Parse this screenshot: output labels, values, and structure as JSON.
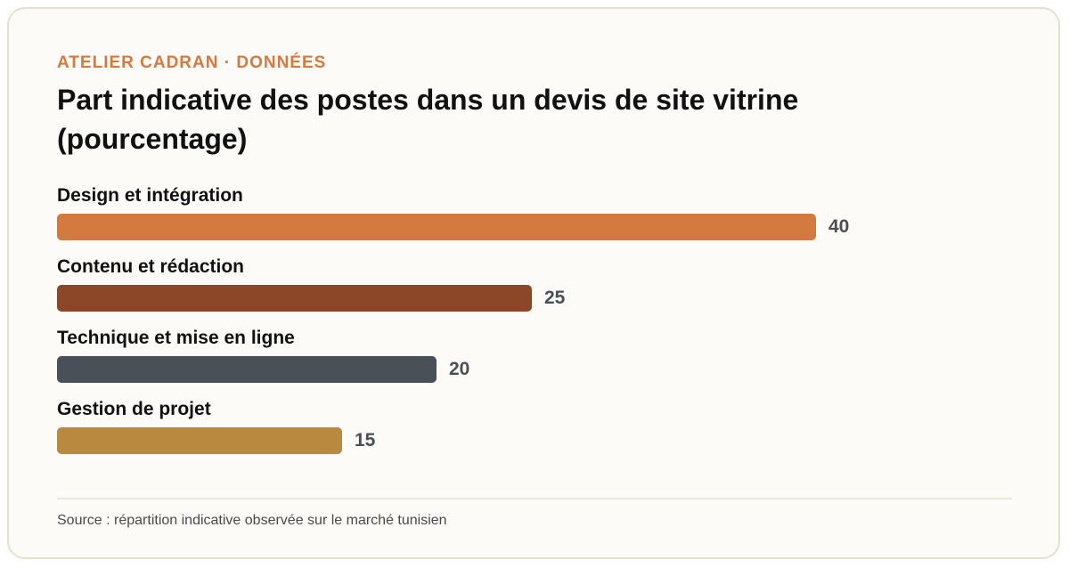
{
  "header": {
    "eyebrow": "ATELIER CADRAN · DONNÉES",
    "title": "Part indicative des postes dans un devis de site vitrine (pourcentage)"
  },
  "chart_data": {
    "type": "bar",
    "orientation": "horizontal",
    "title": "Part indicative des postes dans un devis de site vitrine (pourcentage)",
    "categories": [
      "Design et intégration",
      "Contenu et rédaction",
      "Technique et mise en ligne",
      "Gestion de projet"
    ],
    "values": [
      40,
      25,
      20,
      15
    ],
    "colors": [
      "#d4793f",
      "#8b4728",
      "#4a5058",
      "#b98940"
    ],
    "xlim": [
      0,
      50
    ],
    "grid": false,
    "legend": "none"
  },
  "footer": {
    "source": "Source : répartition indicative observée sur le marché tunisien"
  }
}
